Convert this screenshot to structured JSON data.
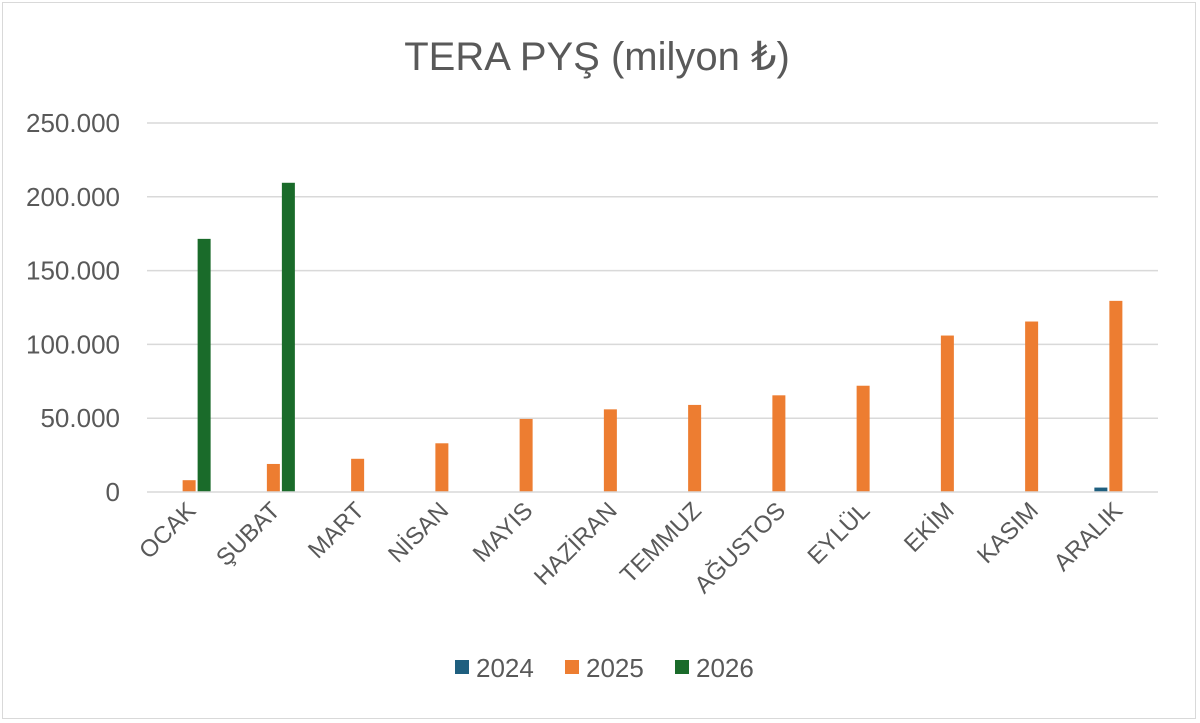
{
  "chart_data": {
    "type": "bar",
    "title": "TERA PYŞ (milyon ₺)",
    "xlabel": "",
    "ylabel": "",
    "categories": [
      "OCAK",
      "ŞUBAT",
      "MART",
      "NİSAN",
      "MAYIS",
      "HAZİRAN",
      "TEMMUZ",
      "AĞUSTOS",
      "EYLÜL",
      "EKİM",
      "KASIM",
      "ARALIK"
    ],
    "series": [
      {
        "name": "2024",
        "color": "#1f5f7f",
        "values": [
          null,
          null,
          null,
          null,
          null,
          null,
          null,
          null,
          null,
          null,
          null,
          3000
        ]
      },
      {
        "name": "2025",
        "color": "#ed7d31",
        "values": [
          8000,
          19000,
          22500,
          33000,
          49500,
          56000,
          59000,
          65500,
          72000,
          106000,
          115500,
          129500
        ]
      },
      {
        "name": "2026",
        "color": "#1a6b2a",
        "values": [
          171500,
          209500,
          null,
          null,
          null,
          null,
          null,
          null,
          null,
          null,
          null,
          null
        ]
      }
    ],
    "ylim": [
      0,
      250000
    ],
    "yticks": [
      0,
      50000,
      100000,
      150000,
      200000,
      250000
    ],
    "ytick_labels": [
      "0",
      "50.000",
      "100.000",
      "150.000",
      "200.000",
      "250.000"
    ],
    "grid": true,
    "legend_position": "bottom"
  }
}
